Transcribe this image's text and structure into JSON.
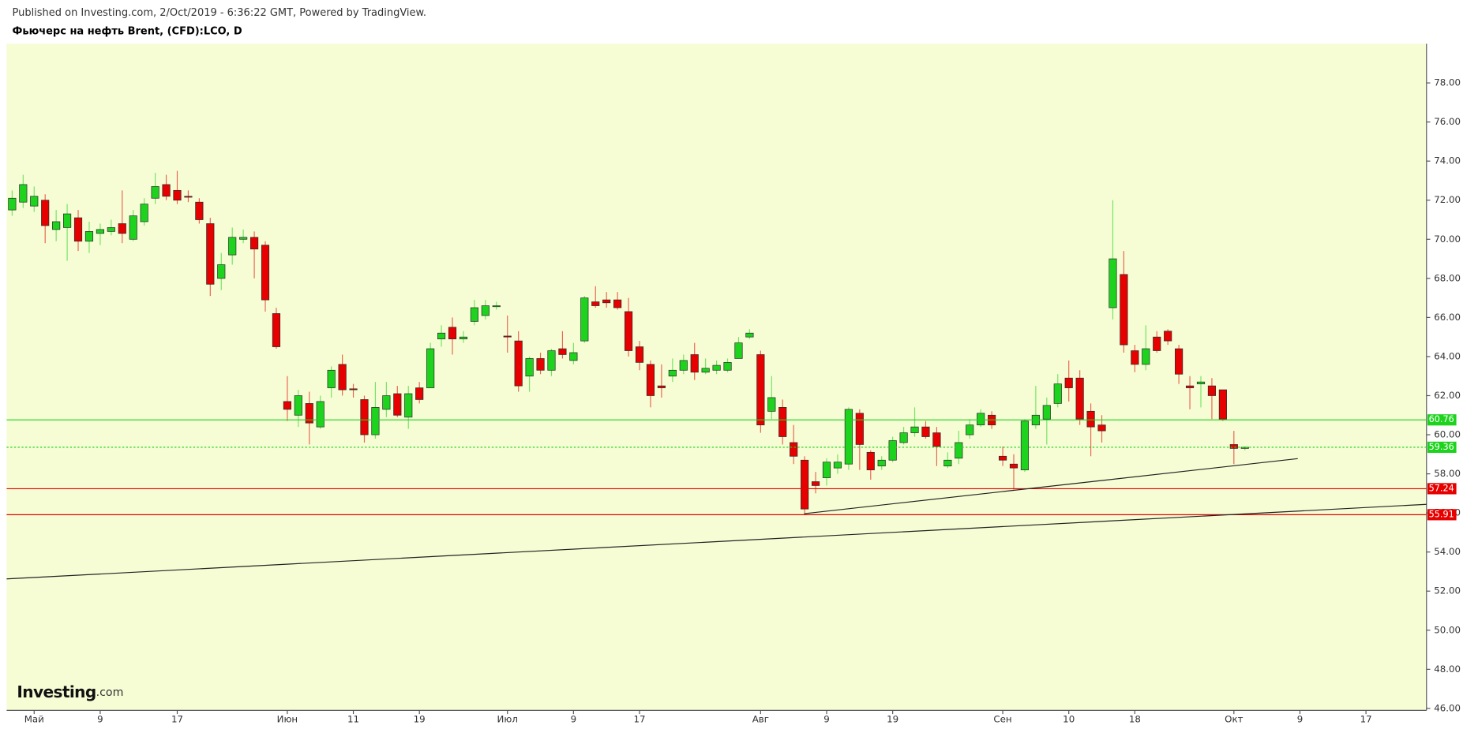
{
  "subtitle": "Published on Investing.com, 2/Oct/2019 - 6:36:22 GMT, Powered by TradingView.",
  "logo": {
    "name": "Investing",
    "suffix": ".com"
  },
  "chart_data": {
    "type": "candlestick",
    "title": "Фьючерс на нефть Brent, (CFD):LCO, D",
    "up_color": "#1ed31e",
    "down_color": "#e60000",
    "background": "#f6fdd4",
    "categories": [
      null,
      null,
      "Май",
      null,
      null,
      null,
      null,
      null,
      "9",
      null,
      null,
      null,
      null,
      null,
      null,
      "17",
      null,
      null,
      null,
      null,
      null,
      null,
      null,
      null,
      null,
      "Июн",
      null,
      null,
      null,
      null,
      null,
      "11",
      null,
      null,
      null,
      null,
      null,
      "19",
      null,
      null,
      null,
      null,
      null,
      null,
      null,
      "Июл",
      null,
      null,
      null,
      null,
      null,
      "9",
      null,
      null,
      null,
      null,
      null,
      "17",
      null,
      null,
      null,
      null,
      null,
      null,
      null,
      null,
      null,
      null,
      "Авг",
      null,
      null,
      null,
      null,
      null,
      "9",
      null,
      null,
      null,
      null,
      null,
      "19",
      null,
      null,
      null,
      null,
      null,
      null,
      null,
      null,
      null,
      "Сен",
      null,
      null,
      null,
      null,
      null,
      "10",
      null,
      null,
      null,
      null,
      null,
      "18",
      null,
      null,
      null,
      null,
      null,
      null,
      null,
      null,
      "Окт",
      null,
      null,
      null,
      null,
      null,
      "9",
      null,
      null,
      null,
      null,
      null,
      "17",
      null,
      null,
      null,
      null,
      null
    ],
    "open": [
      71.5,
      71.9,
      71.7,
      72.0,
      70.5,
      70.6,
      71.1,
      69.9,
      70.3,
      70.4,
      70.8,
      70.0,
      70.9,
      72.1,
      72.8,
      72.5,
      72.2,
      71.9,
      70.8,
      68.0,
      69.2,
      70.0,
      70.1,
      69.7,
      66.2,
      61.7,
      61.0,
      61.6,
      60.4,
      62.4,
      63.6,
      62.35,
      61.8,
      60.0,
      61.3,
      62.1,
      60.9,
      62.4,
      62.4,
      64.9,
      65.5,
      64.9,
      65.8,
      66.1,
      66.55,
      65.05,
      64.8,
      63.0,
      63.9,
      63.3,
      64.4,
      63.8,
      64.8,
      66.8,
      66.9,
      66.9,
      66.3,
      64.5,
      63.6,
      62.5,
      63.0,
      63.3,
      64.1,
      63.2,
      63.3,
      63.3,
      63.9,
      65.0,
      64.1,
      61.2,
      61.4,
      59.6,
      58.7,
      57.6,
      57.8,
      58.3,
      58.5,
      61.1,
      59.1,
      58.4,
      58.7,
      59.6,
      60.1,
      60.4,
      60.1,
      58.4,
      58.8,
      60.0,
      60.5,
      61.0,
      58.9,
      58.5,
      58.2,
      60.5,
      60.8,
      61.6,
      62.9,
      62.9,
      61.2,
      60.5,
      66.5,
      68.2,
      64.3,
      63.6,
      65.0,
      65.3,
      64.4,
      62.5,
      62.6,
      62.5,
      62.3,
      59.5,
      59.3,
      null,
      null,
      null,
      null,
      null,
      null,
      null,
      null,
      null,
      null,
      null,
      null,
      null,
      null,
      null,
      null
    ],
    "high": [
      72.5,
      73.3,
      72.7,
      72.3,
      71.5,
      71.8,
      71.5,
      70.9,
      70.8,
      71.0,
      72.5,
      71.5,
      72.1,
      73.4,
      73.3,
      73.5,
      72.5,
      72.1,
      71.1,
      69.3,
      70.6,
      70.5,
      70.4,
      69.9,
      66.5,
      63.0,
      62.3,
      62.2,
      62.0,
      63.5,
      64.1,
      62.6,
      62.0,
      62.7,
      62.7,
      62.5,
      62.5,
      62.7,
      64.7,
      65.6,
      66.0,
      65.3,
      66.9,
      66.9,
      66.8,
      66.1,
      65.3,
      64.0,
      64.2,
      64.4,
      65.3,
      64.7,
      67.1,
      67.6,
      67.3,
      67.3,
      67.0,
      64.8,
      63.8,
      63.6,
      63.9,
      64.1,
      64.7,
      63.9,
      63.8,
      63.9,
      65.0,
      65.4,
      64.3,
      63.0,
      61.8,
      60.5,
      58.9,
      58.1,
      58.8,
      59.0,
      61.4,
      61.3,
      59.2,
      58.9,
      59.9,
      60.4,
      61.4,
      60.7,
      60.4,
      59.1,
      60.2,
      60.8,
      61.3,
      61.2,
      59.4,
      59.0,
      60.8,
      62.5,
      61.9,
      63.1,
      63.8,
      63.3,
      61.6,
      61.0,
      72.0,
      69.4,
      64.6,
      65.6,
      65.3,
      65.4,
      64.6,
      63.0,
      63.0,
      62.9,
      62.3,
      60.2,
      59.4,
      null,
      null,
      null,
      null,
      null,
      null,
      null,
      null,
      null,
      null,
      null,
      null,
      null,
      null,
      null,
      null
    ],
    "low": [
      71.2,
      71.6,
      71.4,
      69.8,
      69.9,
      68.9,
      69.4,
      69.3,
      69.7,
      70.2,
      69.8,
      69.9,
      70.7,
      71.8,
      72.0,
      71.8,
      71.9,
      70.8,
      67.1,
      67.4,
      68.7,
      69.8,
      68.0,
      66.3,
      64.4,
      60.7,
      60.4,
      59.5,
      60.3,
      61.9,
      62.0,
      61.9,
      59.6,
      59.8,
      60.9,
      60.9,
      60.3,
      61.6,
      62.4,
      64.5,
      64.1,
      64.7,
      65.6,
      65.9,
      66.4,
      64.2,
      62.2,
      62.2,
      63.1,
      63.0,
      63.9,
      63.6,
      64.7,
      66.5,
      66.5,
      66.4,
      64.0,
      63.3,
      61.4,
      61.9,
      62.7,
      63.1,
      62.8,
      63.1,
      63.1,
      63.2,
      63.9,
      64.9,
      60.1,
      60.8,
      59.5,
      58.5,
      55.9,
      57.0,
      57.4,
      58.0,
      58.2,
      58.2,
      57.7,
      58.2,
      58.6,
      59.5,
      59.9,
      59.8,
      58.4,
      58.3,
      58.5,
      59.8,
      60.4,
      60.3,
      58.4,
      57.2,
      58.1,
      60.3,
      59.5,
      61.4,
      61.7,
      60.5,
      58.9,
      59.6,
      65.9,
      64.2,
      63.2,
      63.3,
      64.2,
      64.6,
      62.6,
      61.3,
      61.4,
      60.8,
      60.7,
      58.5,
      59.2,
      null,
      null,
      null,
      null,
      null,
      null,
      null,
      null,
      null,
      null,
      null,
      null,
      null,
      null,
      null,
      null
    ],
    "close": [
      72.1,
      72.8,
      72.2,
      70.7,
      70.9,
      71.3,
      69.9,
      70.4,
      70.5,
      70.6,
      70.3,
      71.2,
      71.8,
      72.7,
      72.2,
      72.0,
      72.15,
      71.0,
      67.7,
      68.7,
      70.1,
      70.1,
      69.5,
      66.9,
      64.5,
      61.3,
      62.0,
      60.6,
      61.7,
      63.3,
      62.3,
      62.3,
      60.0,
      61.4,
      62.0,
      61.0,
      62.1,
      61.8,
      64.4,
      65.2,
      64.9,
      65.0,
      66.5,
      66.6,
      66.6,
      65.0,
      62.5,
      63.9,
      63.3,
      64.3,
      64.1,
      64.2,
      67.0,
      66.6,
      66.75,
      66.5,
      64.3,
      63.7,
      62.0,
      62.4,
      63.3,
      63.8,
      63.2,
      63.4,
      63.55,
      63.7,
      64.7,
      65.2,
      60.5,
      61.9,
      59.9,
      58.9,
      56.2,
      57.4,
      58.6,
      58.6,
      61.3,
      59.5,
      58.2,
      58.7,
      59.7,
      60.1,
      60.4,
      59.9,
      59.4,
      58.7,
      59.6,
      60.5,
      61.1,
      60.5,
      58.7,
      58.3,
      60.7,
      61.0,
      61.5,
      62.6,
      62.4,
      60.8,
      60.4,
      60.2,
      69.0,
      64.6,
      63.6,
      64.4,
      64.3,
      64.8,
      63.1,
      62.4,
      62.7,
      62.0,
      60.8,
      59.3,
      59.36,
      null,
      null,
      null,
      null,
      null,
      null,
      null,
      null,
      null,
      null,
      null,
      null,
      null,
      null,
      null,
      null
    ],
    "ylim": [
      45.9,
      80.0
    ],
    "yticks": [
      {
        "value": 46,
        "label": "46.00"
      },
      {
        "value": 48,
        "label": "48.00"
      },
      {
        "value": 50,
        "label": "50.00"
      },
      {
        "value": 52,
        "label": "52.00"
      },
      {
        "value": 54,
        "label": "54.00"
      },
      {
        "value": 56,
        "label": "56.00"
      },
      {
        "value": 58,
        "label": "58.00"
      },
      {
        "value": 60,
        "label": "60.00"
      },
      {
        "value": 62,
        "label": "62.00"
      },
      {
        "value": 64,
        "label": "64.00"
      },
      {
        "value": 66,
        "label": "66.00"
      },
      {
        "value": 68,
        "label": "68.00"
      },
      {
        "value": 70,
        "label": "70.00"
      },
      {
        "value": 72,
        "label": "72.00"
      },
      {
        "value": 74,
        "label": "74.00"
      },
      {
        "value": 76,
        "label": "76.00"
      },
      {
        "value": 78,
        "label": "78.00"
      }
    ],
    "price_lines": [
      {
        "value": 60.76,
        "color": "#1ed31e",
        "style": "solid"
      },
      {
        "value": 59.36,
        "color": "#1ed31e",
        "style": "dotted"
      },
      {
        "value": 57.24,
        "color": "#e60000",
        "style": "solid"
      },
      {
        "value": 55.91,
        "color": "#e60000",
        "style": "solid"
      }
    ]
  }
}
